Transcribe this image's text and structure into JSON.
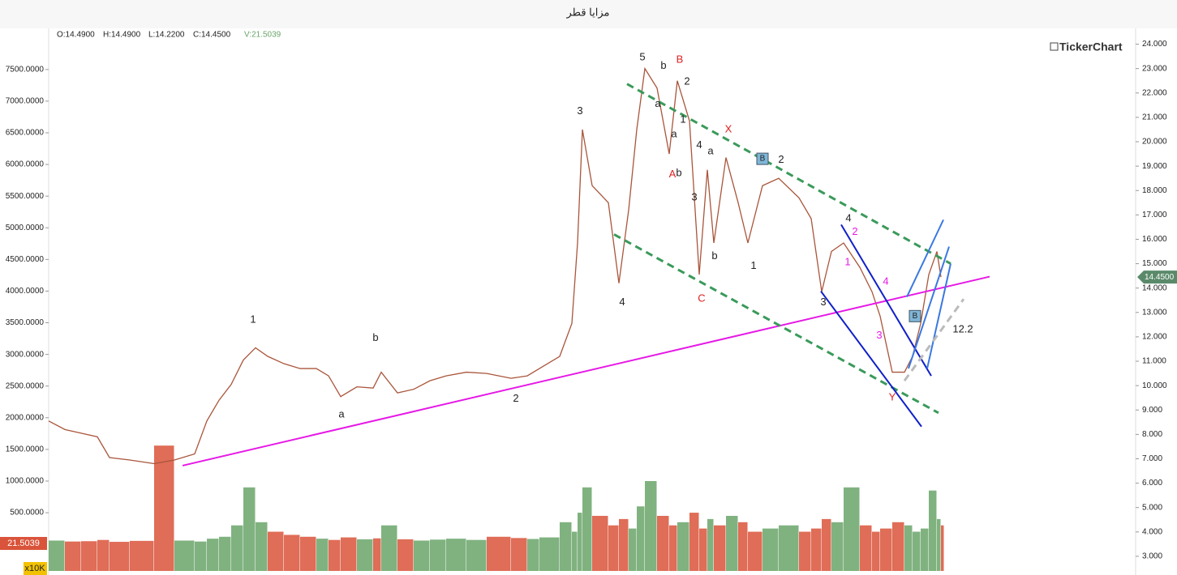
{
  "header": {
    "title": "مزايا قطر",
    "ohlc": [
      "O:14.4900",
      "H:14.4900",
      "L:14.2200",
      "C:14.4500"
    ],
    "volume": "V:21.5039",
    "brand": "TickerChart",
    "volume_unit": "x10K",
    "volume_badge": "21.5039"
  },
  "chart_data": {
    "type": "line",
    "x": [
      0,
      20,
      40,
      60,
      75,
      100,
      130,
      155,
      180,
      195,
      210,
      225,
      240,
      255,
      270,
      290,
      310,
      330,
      345,
      360,
      380,
      400,
      410,
      430,
      450,
      470,
      490,
      515,
      540,
      570,
      590,
      605,
      630,
      645,
      652,
      658,
      670,
      690,
      703,
      715,
      725,
      735,
      750,
      765,
      775,
      790,
      802,
      812,
      820,
      835,
      850,
      862,
      880,
      900,
      925,
      940,
      953,
      965,
      980,
      1000,
      1015,
      1025,
      1040,
      1055,
      1065,
      1075,
      1085,
      1095,
      1100
    ],
    "xlim": [
      0,
      1340
    ],
    "series": [
      {
        "name": "Price",
        "color": "#a9553b",
        "values": [
          8.55,
          8.2,
          8.05,
          7.9,
          7.05,
          6.95,
          6.8,
          6.95,
          7.2,
          8.55,
          9.4,
          10.05,
          11.05,
          11.55,
          11.2,
          10.9,
          10.7,
          10.7,
          10.4,
          9.55,
          9.95,
          9.9,
          10.55,
          9.7,
          9.85,
          10.2,
          10.4,
          10.55,
          10.5,
          10.3,
          10.4,
          10.7,
          11.2,
          12.55,
          15.85,
          20.5,
          18.2,
          17.5,
          14.2,
          17.2,
          20.5,
          23.0,
          22.2,
          19.5,
          22.5,
          20.85,
          14.55,
          18.85,
          15.85,
          19.35,
          17.5,
          15.85,
          18.2,
          18.5,
          17.7,
          16.85,
          13.85,
          15.5,
          15.85,
          14.85,
          13.85,
          12.85,
          10.55,
          10.55,
          11.2,
          12.55,
          14.55,
          15.5,
          14.45
        ]
      },
      {
        "name": "Volume",
        "axis": "y2",
        "up_color": "#6aa56a",
        "down_color": "#d9543a",
        "values": [
          60,
          45,
          50,
          70,
          40,
          55,
          1560,
          60,
          45,
          90,
          120,
          300,
          900,
          350,
          200,
          150,
          120,
          90,
          70,
          110,
          80,
          95,
          300,
          80,
          60,
          75,
          90,
          70,
          120,
          100,
          85,
          110,
          350,
          200,
          500,
          900,
          450,
          300,
          400,
          250,
          600,
          1000,
          450,
          300,
          350,
          500,
          250,
          400,
          300,
          450,
          350,
          200,
          250,
          300,
          200,
          250,
          400,
          350,
          900,
          300,
          200,
          250,
          350,
          300,
          200,
          250,
          850,
          400,
          300
        ]
      }
    ],
    "ylim": [
      2.4,
      24.65
    ],
    "yticks": [
      {
        "value": 3,
        "label": "3.000"
      },
      {
        "value": 4,
        "label": "4.000"
      },
      {
        "value": 5,
        "label": "5.000"
      },
      {
        "value": 6,
        "label": "6.000"
      },
      {
        "value": 7,
        "label": "7.000"
      },
      {
        "value": 8,
        "label": "8.000"
      },
      {
        "value": 9,
        "label": "9.000"
      },
      {
        "value": 10,
        "label": "10.000"
      },
      {
        "value": 11,
        "label": "11.000"
      },
      {
        "value": 12,
        "label": "12.000"
      },
      {
        "value": 13,
        "label": "13.000"
      },
      {
        "value": 14,
        "label": "14.000"
      },
      {
        "value": 15,
        "label": "15.000"
      },
      {
        "value": 16,
        "label": "16.000"
      },
      {
        "value": 17,
        "label": "17.000"
      },
      {
        "value": 18,
        "label": "18.000"
      },
      {
        "value": 19,
        "label": "19.000"
      },
      {
        "value": 20,
        "label": "20.000"
      },
      {
        "value": 21,
        "label": "21.000"
      },
      {
        "value": 22,
        "label": "22.000"
      },
      {
        "value": 23,
        "label": "23.000"
      },
      {
        "value": 24,
        "label": "24.000"
      }
    ],
    "y2lim": [
      -420,
      8150
    ],
    "y2ticks": [
      {
        "value": 500,
        "label": "500.0000"
      },
      {
        "value": 1000,
        "label": "1000.0000"
      },
      {
        "value": 1500,
        "label": "1500.0000"
      },
      {
        "value": 2000,
        "label": "2000.0000"
      },
      {
        "value": 2500,
        "label": "2500.0000"
      },
      {
        "value": 3000,
        "label": "3000.0000"
      },
      {
        "value": 3500,
        "label": "3500.0000"
      },
      {
        "value": 4000,
        "label": "4000.0000"
      },
      {
        "value": 4500,
        "label": "4500.0000"
      },
      {
        "value": 5000,
        "label": "5000.0000"
      },
      {
        "value": 5500,
        "label": "5500.0000"
      },
      {
        "value": 6000,
        "label": "6000.0000"
      },
      {
        "value": 6500,
        "label": "6500.0000"
      },
      {
        "value": 7000,
        "label": "7000.0000"
      },
      {
        "value": 7500,
        "label": "7500.0000"
      }
    ],
    "last_price": {
      "value": 14.45,
      "label": "14.4500"
    },
    "trendlines": [
      {
        "color": "#e619e6",
        "dashed": false,
        "x": [
          165,
          1160
        ],
        "values": [
          6.72,
          14.47
        ]
      },
      {
        "color": "#3a9a5a",
        "dashed": true,
        "x": [
          713,
          1112
        ],
        "values": [
          22.37,
          15.0
        ]
      },
      {
        "color": "#3a9a5a",
        "dashed": true,
        "x": [
          697,
          1097
        ],
        "values": [
          16.2,
          8.88
        ]
      },
      {
        "color": "#1020c8",
        "dashed": false,
        "x": [
          977,
          1088
        ],
        "values": [
          16.6,
          10.4
        ]
      },
      {
        "color": "#1020c8",
        "dashed": false,
        "x": [
          952,
          1076
        ],
        "values": [
          13.87,
          8.32
        ]
      },
      {
        "color": "#3a78e0",
        "dashed": false,
        "x": [
          1060,
          1110
        ],
        "values": [
          10.7,
          15.7
        ]
      },
      {
        "color": "#3a78e0",
        "dashed": false,
        "x": [
          1058,
          1103
        ],
        "values": [
          13.64,
          16.8
        ]
      },
      {
        "color": "#3a78e0",
        "dashed": false,
        "x": [
          1083,
          1112
        ],
        "values": [
          10.7,
          15.0
        ]
      },
      {
        "color": "#bbbbbb",
        "dashed": true,
        "x": [
          1055,
          1128
        ],
        "values": [
          10.2,
          13.55
        ]
      }
    ],
    "annotations": [
      {
        "text": "1",
        "x": 252,
        "y": 12.7,
        "color": "#222"
      },
      {
        "text": "a",
        "x": 361,
        "y": 8.8,
        "color": "#222"
      },
      {
        "text": "b",
        "x": 403,
        "y": 11.95,
        "color": "#222"
      },
      {
        "text": "2",
        "x": 576,
        "y": 9.45,
        "color": "#222"
      },
      {
        "text": "3",
        "x": 655,
        "y": 21.25,
        "color": "#222"
      },
      {
        "text": "4",
        "x": 707,
        "y": 13.4,
        "color": "#222"
      },
      {
        "text": "5",
        "x": 732,
        "y": 23.45,
        "color": "#222"
      },
      {
        "text": "b",
        "x": 758,
        "y": 23.1,
        "color": "#222"
      },
      {
        "text": "a",
        "x": 751,
        "y": 21.55,
        "color": "#222"
      },
      {
        "text": "2",
        "x": 787,
        "y": 22.45,
        "color": "#222"
      },
      {
        "text": "1",
        "x": 782,
        "y": 20.9,
        "color": "#222"
      },
      {
        "text": "a",
        "x": 771,
        "y": 20.3,
        "color": "#222"
      },
      {
        "text": "b",
        "x": 777,
        "y": 18.7,
        "color": "#222"
      },
      {
        "text": "4",
        "x": 802,
        "y": 19.85,
        "color": "#222"
      },
      {
        "text": "a",
        "x": 816,
        "y": 19.6,
        "color": "#222"
      },
      {
        "text": "3",
        "x": 796,
        "y": 17.7,
        "color": "#222"
      },
      {
        "text": "b",
        "x": 821,
        "y": 15.3,
        "color": "#222"
      },
      {
        "text": "1",
        "x": 869,
        "y": 14.9,
        "color": "#222"
      },
      {
        "text": "2",
        "x": 903,
        "y": 19.25,
        "color": "#222"
      },
      {
        "text": "4",
        "x": 986,
        "y": 16.85,
        "color": "#222"
      },
      {
        "text": "3",
        "x": 955,
        "y": 13.4,
        "color": "#222"
      },
      {
        "text": "B",
        "x": 778,
        "y": 23.35,
        "color": "#e02020"
      },
      {
        "text": "A",
        "x": 769,
        "y": 18.65,
        "color": "#e02020"
      },
      {
        "text": "X",
        "x": 838,
        "y": 20.5,
        "color": "#e02020"
      },
      {
        "text": "C",
        "x": 805,
        "y": 13.55,
        "color": "#e02020"
      },
      {
        "text": "Y",
        "x": 1040,
        "y": 9.5,
        "color": "#e02020"
      },
      {
        "text": "2",
        "x": 994,
        "y": 16.3,
        "color": "#e619e6"
      },
      {
        "text": "1",
        "x": 985,
        "y": 15.05,
        "color": "#e619e6"
      },
      {
        "text": "4",
        "x": 1032,
        "y": 14.25,
        "color": "#e619e6"
      },
      {
        "text": "3",
        "x": 1024,
        "y": 12.05,
        "color": "#e619e6"
      },
      {
        "text": "12.2",
        "x": 1127,
        "y": 12.3,
        "color": "#222"
      }
    ],
    "markers": [
      {
        "text": "B",
        "x": 880,
        "y": 19.3
      },
      {
        "text": "B",
        "x": 1068,
        "y": 12.85
      }
    ]
  }
}
